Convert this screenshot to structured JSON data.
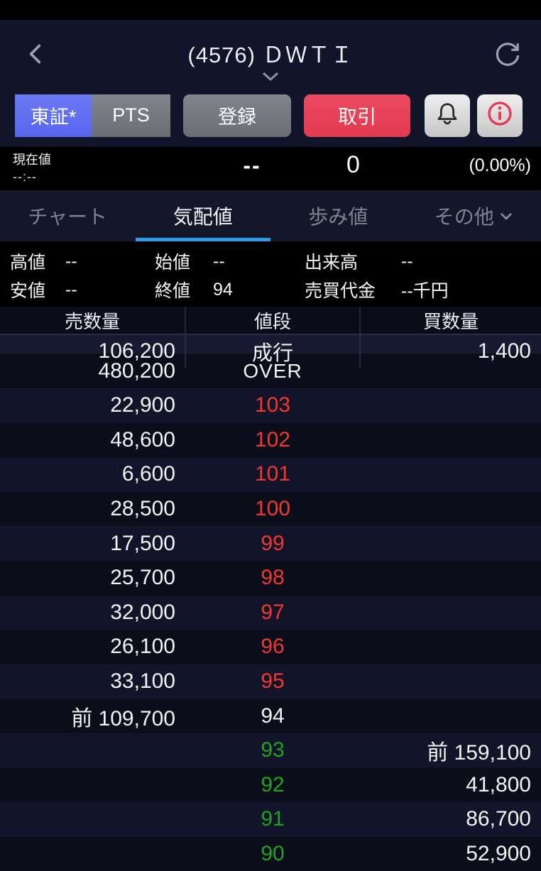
{
  "header": {
    "title": "(4576) ＤＷＴＩ",
    "back_icon": "chevron-left",
    "refresh_icon": "refresh-circular-arrow",
    "title_caret_icon": "chevron-down"
  },
  "toolbar": {
    "market_segments": [
      {
        "label": "東証*",
        "active": true
      },
      {
        "label": "PTS",
        "active": false
      }
    ],
    "register_label": "登録",
    "trade_label": "取引",
    "bell_icon": "notification-bell",
    "info_icon": "circled-info"
  },
  "current": {
    "label": "現在値",
    "time": "--:--",
    "price": "--",
    "change": "0",
    "change_percent": "(0.00%)"
  },
  "tabs": {
    "chart": "チャート",
    "quotes": "気配値",
    "ticks": "歩み値",
    "other": "その他"
  },
  "stats": {
    "row1": [
      {
        "label": "高値",
        "value": "--"
      },
      {
        "label": "始値",
        "value": "--"
      },
      {
        "label": "出来高",
        "value": "--"
      }
    ],
    "row2": [
      {
        "label": "安値",
        "value": "--"
      },
      {
        "label": "終値",
        "value": "94"
      },
      {
        "label": "売買代金",
        "value": "--千円"
      }
    ]
  },
  "board": {
    "columns": {
      "sell": "売数量",
      "price": "値段",
      "buy": "買数量"
    },
    "market_order_row": {
      "sell": "106,200",
      "price": "成行",
      "buy": "1,400"
    },
    "over_row": {
      "sell": "480,200",
      "price": "OVER",
      "buy": ""
    },
    "rows": [
      {
        "sell": "22,900",
        "price": "103",
        "color": "red",
        "buy": ""
      },
      {
        "sell": "48,600",
        "price": "102",
        "color": "red",
        "buy": ""
      },
      {
        "sell": "6,600",
        "price": "101",
        "color": "red",
        "buy": ""
      },
      {
        "sell": "28,500",
        "price": "100",
        "color": "red",
        "buy": ""
      },
      {
        "sell": "17,500",
        "price": "99",
        "color": "red",
        "buy": ""
      },
      {
        "sell": "25,700",
        "price": "98",
        "color": "red",
        "buy": ""
      },
      {
        "sell": "32,000",
        "price": "97",
        "color": "red",
        "buy": ""
      },
      {
        "sell": "26,100",
        "price": "96",
        "color": "red",
        "buy": ""
      },
      {
        "sell": "33,100",
        "price": "95",
        "color": "red",
        "buy": ""
      },
      {
        "sell": "前 109,700",
        "price": "94",
        "color": "white",
        "buy": ""
      },
      {
        "sell": "",
        "price": "93",
        "color": "green",
        "buy": "前 159,100"
      },
      {
        "sell": "",
        "price": "92",
        "color": "green",
        "buy": "41,800"
      },
      {
        "sell": "",
        "price": "91",
        "color": "green",
        "buy": "86,700"
      },
      {
        "sell": "",
        "price": "90",
        "color": "green",
        "buy": "52,900"
      }
    ]
  },
  "colors": {
    "accent_blue": "#6170f0",
    "trade_red": "#e84358",
    "tab_active_blue": "#2d9be8",
    "ask_red": "#f0382e",
    "bid_green": "#1ea51e",
    "panel_navy": "#121429"
  }
}
